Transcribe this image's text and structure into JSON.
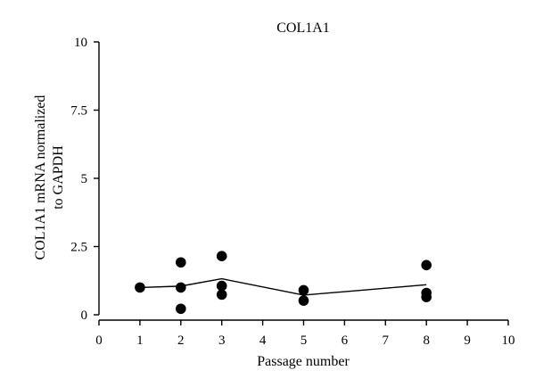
{
  "chart_data": {
    "type": "scatter",
    "title": "COL1A1",
    "xlabel": "Passage number",
    "ylabel_lines": [
      "COL1A1 mRNA normalized",
      "to GAPDH"
    ],
    "xlim": [
      0,
      10
    ],
    "ylim": [
      0,
      10
    ],
    "xticks": [
      "0",
      "1",
      "2",
      "3",
      "4",
      "5",
      "6",
      "7",
      "8",
      "9",
      "10"
    ],
    "yticks": [
      "0",
      "2.5",
      "5",
      "7.5",
      "10"
    ],
    "grid": false,
    "legend": "none",
    "points": [
      {
        "x": 1,
        "y": 1.0
      },
      {
        "x": 2,
        "y": 1.92
      },
      {
        "x": 2,
        "y": 1.0
      },
      {
        "x": 2,
        "y": 0.22
      },
      {
        "x": 3,
        "y": 2.15
      },
      {
        "x": 3,
        "y": 1.06
      },
      {
        "x": 3,
        "y": 0.74
      },
      {
        "x": 5,
        "y": 0.9
      },
      {
        "x": 5,
        "y": 0.52
      },
      {
        "x": 8,
        "y": 1.82
      },
      {
        "x": 8,
        "y": 0.8
      },
      {
        "x": 8,
        "y": 0.65
      }
    ],
    "mean_line": {
      "x": [
        1,
        2,
        3,
        5,
        8
      ],
      "y": [
        1.0,
        1.05,
        1.32,
        0.72,
        1.1
      ]
    },
    "marker_color": "#000000",
    "line_color": "#000000"
  }
}
